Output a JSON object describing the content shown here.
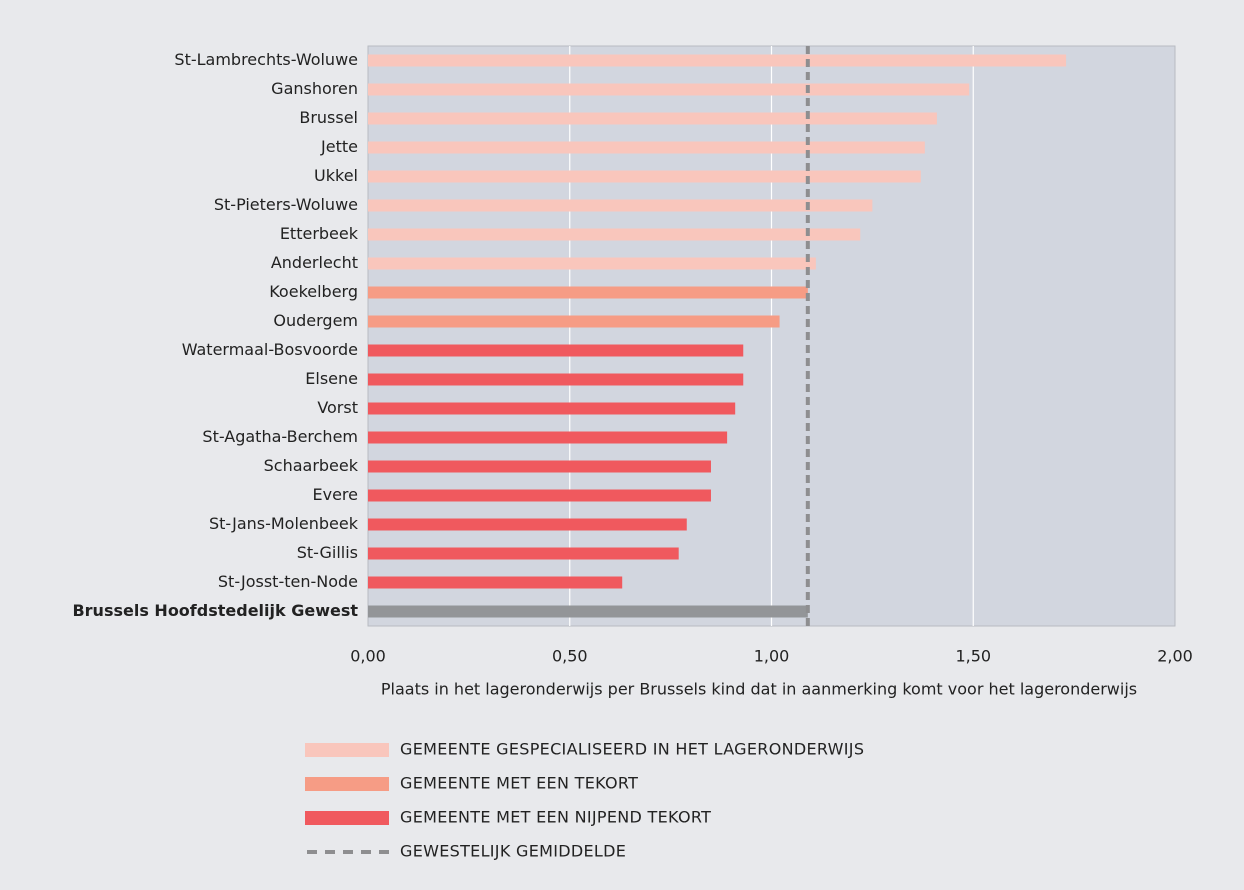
{
  "chart_data": {
    "type": "bar",
    "orientation": "horizontal",
    "categories": [
      "St-Lambrechts-Woluwe",
      "Ganshoren",
      "Brussel",
      "Jette",
      "Ukkel",
      "St-Pieters-Woluwe",
      "Etterbeek",
      "Anderlecht",
      "Koekelberg",
      "Oudergem",
      "Watermaal-Bosvoorde",
      "Elsene",
      "Vorst",
      "St-Agatha-Berchem",
      "Schaarbeek",
      "Evere",
      "St-Jans-Molenbeek",
      "St-Gillis",
      "St-Josst-ten-Node",
      "Brussels Hoofdstedelijk Gewest"
    ],
    "series": [
      {
        "name": "GEMEENTE GESPECIALISEERD IN HET LAGERONDERWIJS",
        "color": "#f9c6bc",
        "values": [
          1.73,
          1.49,
          1.41,
          1.38,
          1.37,
          1.25,
          1.22,
          1.11,
          null,
          null,
          null,
          null,
          null,
          null,
          null,
          null,
          null,
          null,
          null,
          null
        ]
      },
      {
        "name": "GEMEENTE MET EEN TEKORT",
        "color": "#f69c85",
        "values": [
          null,
          null,
          null,
          null,
          null,
          null,
          null,
          null,
          1.09,
          1.02,
          null,
          null,
          null,
          null,
          null,
          null,
          null,
          null,
          null,
          null
        ]
      },
      {
        "name": "GEMEENTE MET EEN NIJPEND TEKORT",
        "color": "#f0595e",
        "values": [
          null,
          null,
          null,
          null,
          null,
          null,
          null,
          null,
          null,
          null,
          0.93,
          0.93,
          0.91,
          0.89,
          0.85,
          0.85,
          0.79,
          0.77,
          0.63,
          null
        ]
      },
      {
        "color": "#939598",
        "values": [
          null,
          null,
          null,
          null,
          null,
          null,
          null,
          null,
          null,
          null,
          null,
          null,
          null,
          null,
          null,
          null,
          null,
          null,
          null,
          1.09
        ]
      }
    ],
    "reference_line": {
      "name": "GEWESTELIJK GEMIDDELDE",
      "value": 1.09,
      "color": "#8e8e90"
    },
    "x_label": "Plaats in het lageronderwijs per Brussels kind dat in aanmerking komt voor het lageronderwijs",
    "xlim": [
      0,
      2
    ],
    "xticks": [
      {
        "value": 0,
        "label": "0,00"
      },
      {
        "value": 0.5,
        "label": "0,50"
      },
      {
        "value": 1,
        "label": "1,00"
      },
      {
        "value": 1.5,
        "label": "1,50"
      },
      {
        "value": 2,
        "label": "2,00"
      }
    ],
    "grid": true
  }
}
